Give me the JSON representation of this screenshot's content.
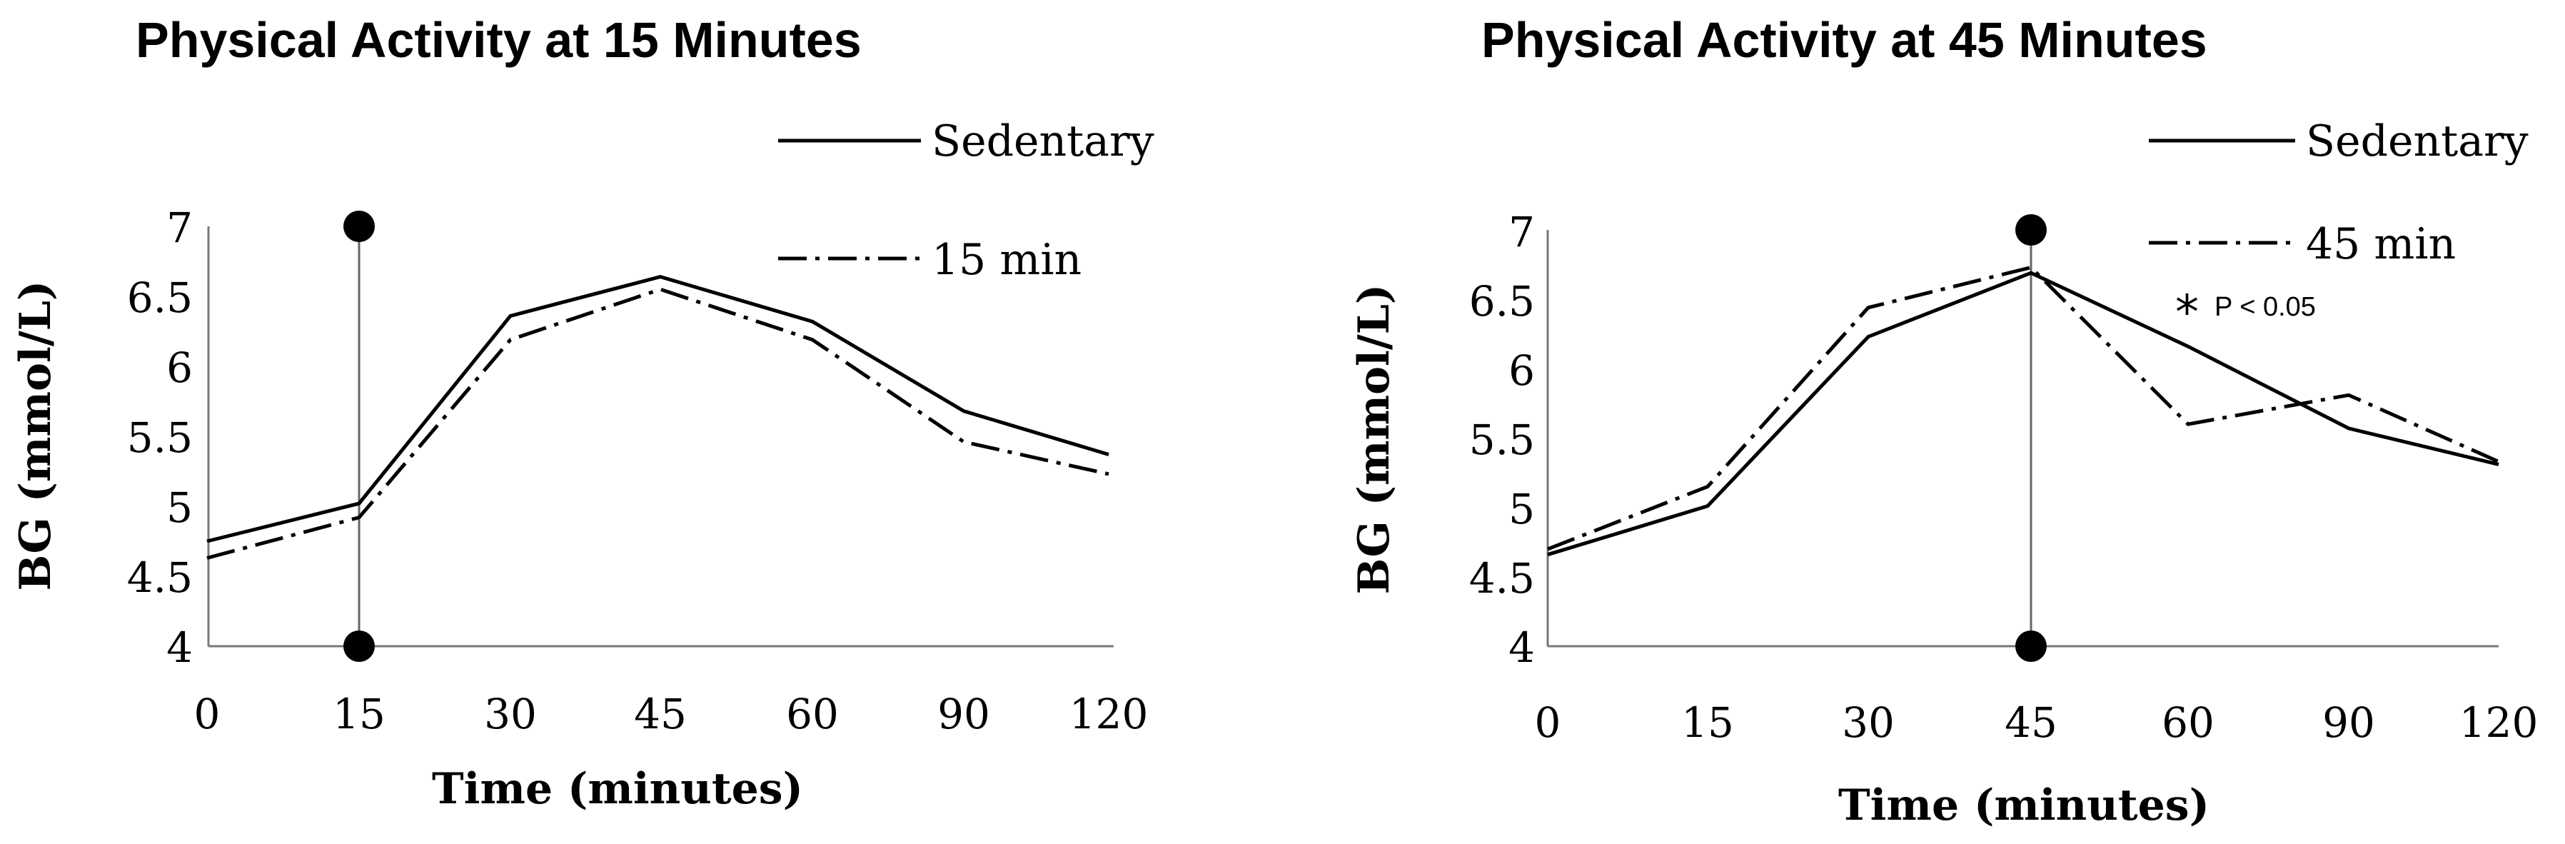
{
  "chart_data": [
    {
      "type": "line",
      "title": "Physical Activity at 15 Minutes",
      "xlabel": "Time (minutes)",
      "ylabel": "BG (mmol/L)",
      "categories": [
        "0",
        "15",
        "30",
        "45",
        "60",
        "90",
        "120"
      ],
      "yticks": [
        "4",
        "4.5",
        "5",
        "5.5",
        "6",
        "6.5",
        "7"
      ],
      "ylim": [
        4,
        7
      ],
      "activity_marker_category": "15",
      "series": [
        {
          "name": "Sedentary",
          "style": "solid",
          "values": [
            4.75,
            5.02,
            6.36,
            6.64,
            6.32,
            5.68,
            5.37
          ]
        },
        {
          "name": "15 min",
          "style": "dash-dot",
          "values": [
            4.63,
            4.92,
            6.19,
            6.55,
            6.19,
            5.46,
            5.23
          ]
        }
      ]
    },
    {
      "type": "line",
      "title": "Physical Activity at 45 Minutes",
      "xlabel": "Time (minutes)",
      "ylabel": "BG (mmol/L)",
      "categories": [
        "0",
        "15",
        "30",
        "45",
        "60",
        "90",
        "120"
      ],
      "yticks": [
        "4",
        "4.5",
        "5",
        "5.5",
        "6",
        "6.5",
        "7"
      ],
      "ylim": [
        4,
        7
      ],
      "activity_marker_category": "45",
      "annotation": {
        "star": "*",
        "text": "P < 0.05"
      },
      "series": [
        {
          "name": "Sedentary",
          "style": "solid",
          "values": [
            4.66,
            5.01,
            6.23,
            6.69,
            6.16,
            5.57,
            5.31
          ]
        },
        {
          "name": "45 min",
          "style": "dash-dot",
          "values": [
            4.7,
            5.15,
            6.44,
            6.73,
            5.6,
            5.81,
            5.33
          ]
        }
      ]
    }
  ]
}
